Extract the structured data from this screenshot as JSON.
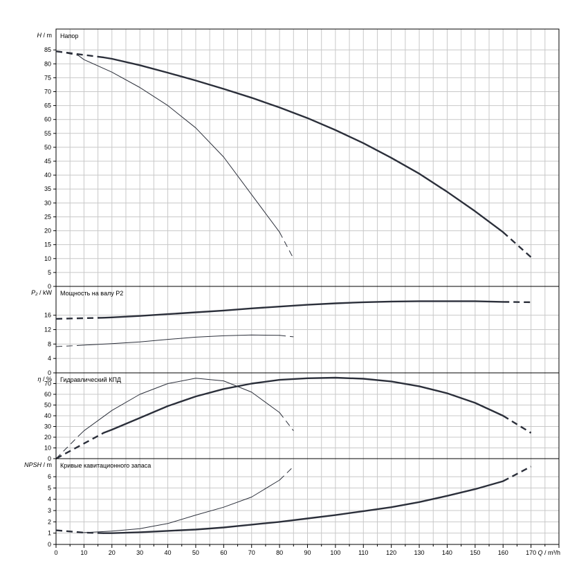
{
  "chart_data": {
    "type": "line",
    "x_axis": {
      "label_var": "Q",
      "label_unit": "m³/h",
      "range": [
        0,
        180
      ],
      "ticks": [
        "0",
        "10",
        "20",
        "30",
        "40",
        "50",
        "60",
        "70",
        "80",
        "90",
        "100",
        "110",
        "120",
        "130",
        "140",
        "150",
        "160",
        "170"
      ]
    },
    "panels": [
      {
        "title": "Напор",
        "ylabel_var": "H",
        "ylabel_unit": "m",
        "ylim": [
          0,
          92.5
        ],
        "yticks": [
          "0",
          "5",
          "10",
          "15",
          "20",
          "25",
          "30",
          "35",
          "40",
          "45",
          "50",
          "55",
          "60",
          "65",
          "70",
          "75",
          "80",
          "85"
        ],
        "series": [
          {
            "weight": "thick",
            "solid": [
              [
                17,
                82.3
              ],
              [
                20,
                81.8
              ],
              [
                30,
                79.5
              ],
              [
                40,
                76.8
              ],
              [
                50,
                74.0
              ],
              [
                60,
                71.0
              ],
              [
                70,
                67.8
              ],
              [
                80,
                64.3
              ],
              [
                90,
                60.5
              ],
              [
                100,
                56.2
              ],
              [
                110,
                51.5
              ],
              [
                120,
                46.2
              ],
              [
                130,
                40.5
              ],
              [
                140,
                34.0
              ],
              [
                150,
                27.0
              ],
              [
                160,
                19.5
              ]
            ],
            "dashed_start": [
              [
                0,
                84.5
              ],
              [
                17,
                82.3
              ]
            ],
            "dashed_end": [
              [
                160,
                19.5
              ],
              [
                170,
                10.5
              ]
            ]
          },
          {
            "weight": "thin",
            "solid": [
              [
                8,
                83.0
              ],
              [
                10,
                81.5
              ],
              [
                20,
                77.0
              ],
              [
                30,
                71.5
              ],
              [
                40,
                65.0
              ],
              [
                50,
                57.0
              ],
              [
                60,
                46.5
              ],
              [
                70,
                33.0
              ],
              [
                80,
                19.5
              ]
            ],
            "dashed_start": [
              [
                0,
                84.5
              ],
              [
                8,
                83.0
              ]
            ],
            "dashed_end": [
              [
                80,
                19.5
              ],
              [
                85,
                10.0
              ]
            ]
          }
        ]
      },
      {
        "title": "Мощность на валу P2",
        "ylabel_var": "P₂",
        "ylabel_unit": "kW",
        "ylim": [
          0,
          24
        ],
        "yticks": [
          "0",
          "4",
          "8",
          "12",
          "16"
        ],
        "series": [
          {
            "weight": "thick",
            "solid": [
              [
                17,
                15.3
              ],
              [
                20,
                15.4
              ],
              [
                30,
                15.8
              ],
              [
                40,
                16.3
              ],
              [
                50,
                16.8
              ],
              [
                60,
                17.3
              ],
              [
                70,
                17.9
              ],
              [
                80,
                18.4
              ],
              [
                90,
                18.9
              ],
              [
                100,
                19.3
              ],
              [
                110,
                19.6
              ],
              [
                120,
                19.8
              ],
              [
                130,
                19.9
              ],
              [
                140,
                19.9
              ],
              [
                150,
                19.9
              ],
              [
                160,
                19.7
              ]
            ],
            "dashed_start": [
              [
                0,
                15.0
              ],
              [
                17,
                15.3
              ]
            ],
            "dashed_end": [
              [
                160,
                19.7
              ],
              [
                170,
                19.6
              ]
            ]
          },
          {
            "weight": "thin",
            "solid": [
              [
                8,
                7.6
              ],
              [
                10,
                7.7
              ],
              [
                20,
                8.1
              ],
              [
                30,
                8.6
              ],
              [
                40,
                9.3
              ],
              [
                50,
                9.9
              ],
              [
                60,
                10.3
              ],
              [
                70,
                10.5
              ],
              [
                80,
                10.4
              ]
            ],
            "dashed_start": [
              [
                0,
                7.3
              ],
              [
                8,
                7.6
              ]
            ],
            "dashed_end": [
              [
                80,
                10.4
              ],
              [
                85,
                10.0
              ]
            ]
          }
        ]
      },
      {
        "title": "Гидравлический КПД",
        "ylabel_var": "η",
        "ylabel_unit": "%",
        "ylim": [
          0,
          80
        ],
        "yticks": [
          "0",
          "10",
          "20",
          "30",
          "40",
          "50",
          "60",
          "70"
        ],
        "series": [
          {
            "weight": "thick",
            "solid": [
              [
                17,
                24
              ],
              [
                20,
                27
              ],
              [
                30,
                38
              ],
              [
                40,
                49
              ],
              [
                50,
                58
              ],
              [
                60,
                65
              ],
              [
                70,
                70
              ],
              [
                80,
                73.5
              ],
              [
                90,
                75
              ],
              [
                100,
                75.5
              ],
              [
                110,
                74.5
              ],
              [
                120,
                72
              ],
              [
                130,
                67.5
              ],
              [
                140,
                61
              ],
              [
                150,
                52
              ],
              [
                160,
                40
              ]
            ],
            "dashed_start": [
              [
                0,
                0
              ],
              [
                17,
                24
              ]
            ],
            "dashed_end": [
              [
                160,
                40
              ],
              [
                170,
                24
              ]
            ]
          },
          {
            "weight": "thin",
            "solid": [
              [
                8,
                21
              ],
              [
                10,
                26
              ],
              [
                20,
                45
              ],
              [
                30,
                60
              ],
              [
                40,
                70
              ],
              [
                50,
                75
              ],
              [
                60,
                72.5
              ],
              [
                70,
                62
              ],
              [
                80,
                43
              ]
            ],
            "dashed_start": [
              [
                0,
                0
              ],
              [
                8,
                21
              ]
            ],
            "dashed_end": [
              [
                80,
                43
              ],
              [
                85,
                26
              ]
            ]
          }
        ]
      },
      {
        "title": "Кривые кавитационного запаса",
        "ylabel_var": "NPSH",
        "ylabel_unit": "m",
        "ylim": [
          0,
          7.6
        ],
        "yticks": [
          "0",
          "1",
          "2",
          "3",
          "4",
          "5",
          "6"
        ],
        "series": [
          {
            "weight": "thick",
            "solid": [
              [
                17,
                1.0
              ],
              [
                20,
                1.0
              ],
              [
                30,
                1.08
              ],
              [
                40,
                1.2
              ],
              [
                50,
                1.32
              ],
              [
                60,
                1.5
              ],
              [
                70,
                1.75
              ],
              [
                80,
                2.0
              ],
              [
                90,
                2.3
              ],
              [
                100,
                2.6
              ],
              [
                110,
                2.95
              ],
              [
                120,
                3.3
              ],
              [
                130,
                3.75
              ],
              [
                140,
                4.3
              ],
              [
                150,
                4.9
              ],
              [
                160,
                5.6
              ]
            ],
            "dashed_start": [
              [
                0,
                1.25
              ],
              [
                10,
                1.05
              ],
              [
                17,
                1.0
              ]
            ],
            "dashed_end": [
              [
                160,
                5.6
              ],
              [
                170,
                6.9
              ]
            ]
          },
          {
            "weight": "thin",
            "solid": [
              [
                8,
                1.05
              ],
              [
                10,
                1.05
              ],
              [
                20,
                1.18
              ],
              [
                30,
                1.4
              ],
              [
                40,
                1.85
              ],
              [
                50,
                2.6
              ],
              [
                60,
                3.3
              ],
              [
                70,
                4.2
              ],
              [
                80,
                5.7
              ]
            ],
            "dashed_start": [
              [
                0,
                1.25
              ],
              [
                8,
                1.05
              ]
            ],
            "dashed_end": [
              [
                80,
                5.7
              ],
              [
                85,
                6.9
              ]
            ]
          }
        ]
      }
    ]
  }
}
